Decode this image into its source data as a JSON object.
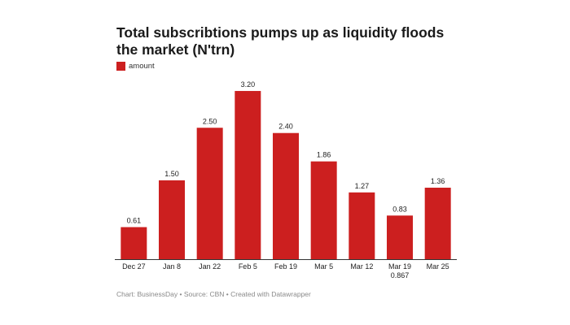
{
  "title": "Total subscribtions pumps up as liquidity floods the market (N'trn)",
  "legend": {
    "label": "amount",
    "color": "#cc1f1f"
  },
  "footer": "Chart: BusinessDay • Source: CBN • Created with Datawrapper",
  "chart_data": {
    "type": "bar",
    "title": "Total subscribtions pumps up as liquidity floods the market (N'trn)",
    "xlabel": "",
    "ylabel": "",
    "ylim": [
      0,
      3.5
    ],
    "grid": false,
    "categories": [
      "Dec 27",
      "Jan 8",
      "Jan 22",
      "Feb 5",
      "Feb 19",
      "Mar 5",
      "Mar 12",
      "Mar 19",
      "Mar 25"
    ],
    "category_sublabels": [
      "",
      "",
      "",
      "",
      "",
      "",
      "",
      "0.867",
      ""
    ],
    "series": [
      {
        "name": "amount",
        "color": "#cc1f1f",
        "values": [
          0.61,
          1.5,
          2.5,
          3.2,
          2.4,
          1.86,
          1.27,
          0.83,
          1.36
        ],
        "value_labels": [
          "0.61",
          "1.50",
          "2.50",
          "3.20",
          "2.40",
          "1.86",
          "1.27",
          "0.83",
          "1.36"
        ]
      }
    ]
  }
}
